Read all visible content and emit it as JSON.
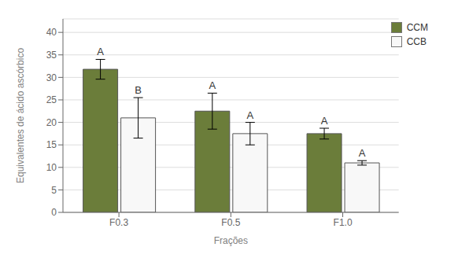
{
  "chart_data": {
    "type": "bar",
    "xlabel": "Frações",
    "ylabel": "Equivalentes de ácido ascórbico",
    "categories": [
      "F0.3",
      "F0.5",
      "F1.0"
    ],
    "series": [
      {
        "name": "CCM",
        "color": "#6b7d3a",
        "values": [
          31.8,
          22.5,
          17.5
        ],
        "errors": [
          2.2,
          4.0,
          1.2
        ],
        "letters": [
          "A",
          "A",
          "A"
        ]
      },
      {
        "name": "CCB",
        "color": "#f8f8f8",
        "values": [
          21.0,
          17.5,
          11.0
        ],
        "errors": [
          4.5,
          2.5,
          0.5
        ],
        "letters": [
          "B",
          "A",
          "A"
        ]
      }
    ],
    "ylim": [
      0,
      43
    ],
    "yticks": [
      0,
      5,
      10,
      15,
      20,
      25,
      30,
      35,
      40
    ],
    "grid": true,
    "legend": "upper right"
  }
}
